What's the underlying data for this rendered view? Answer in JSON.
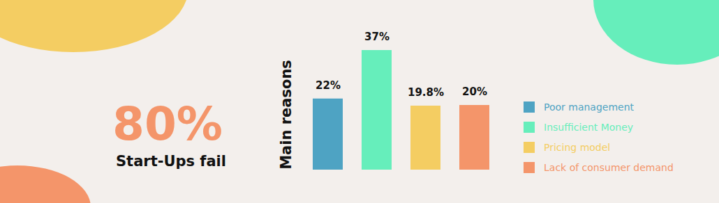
{
  "chart_data": {
    "type": "bar",
    "categories": [
      "Poor management",
      "Insufficient Money",
      "Pricing model",
      "Lack of consumer demand"
    ],
    "values": [
      22,
      37,
      19.8,
      20
    ],
    "value_labels": [
      "22%",
      "37%",
      "19.8%",
      "20%"
    ],
    "colors": [
      "#4ea3c3",
      "#66eebb",
      "#f4cd62",
      "#f4956a"
    ],
    "ylabel": "Main reasons",
    "annotations": [
      "80%",
      "Start-Ups fail"
    ],
    "data_labels": true,
    "tick_labels": false,
    "legend": "right"
  }
}
